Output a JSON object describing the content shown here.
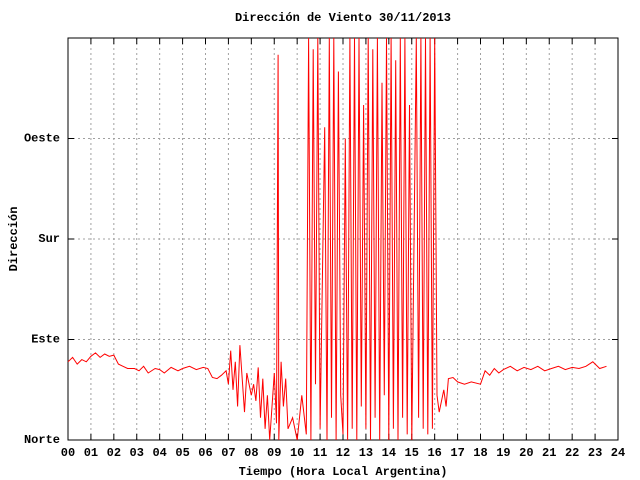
{
  "chart_data": {
    "type": "line",
    "title": "Dirección de Viento 30/11/2013",
    "x_label": "Tiempo (Hora Local Argentina)",
    "y_label": "Dirección",
    "xlim": [
      0,
      24
    ],
    "ylim": [
      0,
      360
    ],
    "xticks": [
      {
        "value": 0,
        "label": "00"
      },
      {
        "value": 1,
        "label": "01"
      },
      {
        "value": 2,
        "label": "02"
      },
      {
        "value": 3,
        "label": "03"
      },
      {
        "value": 4,
        "label": "04"
      },
      {
        "value": 5,
        "label": "05"
      },
      {
        "value": 6,
        "label": "06"
      },
      {
        "value": 7,
        "label": "07"
      },
      {
        "value": 8,
        "label": "08"
      },
      {
        "value": 9,
        "label": "09"
      },
      10,
      11,
      12,
      13,
      14,
      15,
      16,
      17,
      18,
      19,
      20,
      21,
      22,
      23,
      24
    ],
    "yticks": [
      {
        "value": 0,
        "label": "Norte"
      },
      {
        "value": 90,
        "label": "Este"
      },
      {
        "value": 180,
        "label": "Sur"
      },
      {
        "value": 270,
        "label": "Oeste"
      }
    ],
    "grid": true,
    "series": [
      {
        "color": "#ff0000",
        "x": [
          0.0,
          0.2,
          0.4,
          0.6,
          0.8,
          1.0,
          1.2,
          1.4,
          1.6,
          1.8,
          2.0,
          2.2,
          2.4,
          2.6,
          2.9,
          3.1,
          3.3,
          3.5,
          3.8,
          4.0,
          4.2,
          4.5,
          4.8,
          5.0,
          5.3,
          5.6,
          5.9,
          6.1,
          6.3,
          6.5,
          6.7,
          6.9,
          7.0,
          7.1,
          7.2,
          7.3,
          7.4,
          7.5,
          7.6,
          7.7,
          7.8,
          8.0,
          8.1,
          8.2,
          8.3,
          8.4,
          8.5,
          8.6,
          8.7,
          8.8,
          8.9,
          9.0,
          9.1,
          9.17,
          9.2,
          9.3,
          9.4,
          9.5,
          9.6,
          9.8,
          10.0,
          10.2,
          10.4,
          10.5,
          10.6,
          10.7,
          10.8,
          10.9,
          11.0,
          11.2,
          11.3,
          11.4,
          11.5,
          11.6,
          11.7,
          11.8,
          11.9,
          12.0,
          12.1,
          12.2,
          12.3,
          12.4,
          12.5,
          12.6,
          12.7,
          12.8,
          12.9,
          13.0,
          13.1,
          13.2,
          13.3,
          13.4,
          13.5,
          13.6,
          13.7,
          13.8,
          13.9,
          14.0,
          14.1,
          14.2,
          14.3,
          14.4,
          14.5,
          14.6,
          14.7,
          14.8,
          14.9,
          15.0,
          15.2,
          15.3,
          15.4,
          15.5,
          15.6,
          15.7,
          15.8,
          15.9,
          16.0,
          16.1,
          16.2,
          16.4,
          16.5,
          16.6,
          16.8,
          17.0,
          17.3,
          17.6,
          18.0,
          18.2,
          18.4,
          18.6,
          18.8,
          19.0,
          19.3,
          19.6,
          19.9,
          20.2,
          20.5,
          20.8,
          21.1,
          21.4,
          21.7,
          22.0,
          22.3,
          22.6,
          22.9,
          23.2,
          23.5
        ],
        "values": [
          70,
          74,
          68,
          72,
          70,
          75,
          78,
          74,
          77,
          75,
          76,
          68,
          66,
          64,
          64,
          62,
          66,
          60,
          64,
          63,
          60,
          65,
          62,
          64,
          66,
          63,
          65,
          64,
          56,
          55,
          58,
          62,
          50,
          80,
          45,
          70,
          30,
          85,
          55,
          25,
          60,
          40,
          50,
          35,
          65,
          20,
          55,
          10,
          40,
          0,
          30,
          60,
          15,
          345,
          0,
          70,
          30,
          55,
          10,
          20,
          0,
          40,
          5,
          360,
          0,
          350,
          50,
          360,
          10,
          280,
          0,
          360,
          20,
          360,
          0,
          330,
          40,
          5,
          270,
          0,
          360,
          10,
          360,
          0,
          360,
          30,
          300,
          10,
          360,
          0,
          350,
          20,
          360,
          0,
          320,
          40,
          360,
          0,
          360,
          10,
          340,
          0,
          360,
          20,
          360,
          5,
          300,
          0,
          360,
          20,
          360,
          10,
          360,
          5,
          360,
          10,
          360,
          40,
          25,
          45,
          30,
          55,
          56,
          52,
          50,
          52,
          50,
          62,
          58,
          64,
          60,
          63,
          66,
          62,
          65,
          63,
          66,
          62,
          64,
          66,
          63,
          65,
          64,
          66,
          70,
          64,
          66
        ]
      }
    ]
  }
}
